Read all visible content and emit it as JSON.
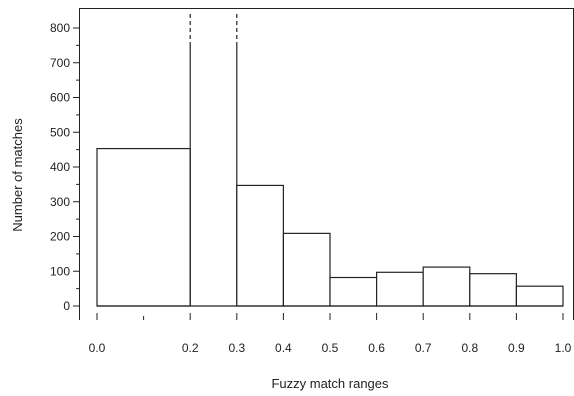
{
  "chart_data": {
    "type": "bar",
    "xlabel": "Fuzzy match ranges",
    "ylabel": "Number of matches",
    "ylim": [
      0,
      800
    ],
    "xlim": [
      0.0,
      1.0
    ],
    "y_ticks": [
      "0",
      "100",
      "200",
      "300",
      "400",
      "500",
      "600",
      "700",
      "800"
    ],
    "x_ticks": [
      "0.0",
      "0.2",
      "0.3",
      "0.4",
      "0.5",
      "0.6",
      "0.7",
      "0.8",
      "0.9",
      "1.0"
    ],
    "bins": [
      {
        "from": 0.0,
        "to": 0.2,
        "value": 453
      },
      {
        "from": 0.2,
        "to": 0.3,
        "value": 745,
        "truncated": true
      },
      {
        "from": 0.3,
        "to": 0.4,
        "value": 347
      },
      {
        "from": 0.4,
        "to": 0.5,
        "value": 209
      },
      {
        "from": 0.5,
        "to": 0.6,
        "value": 82
      },
      {
        "from": 0.6,
        "to": 0.7,
        "value": 97
      },
      {
        "from": 0.7,
        "to": 0.8,
        "value": 112
      },
      {
        "from": 0.8,
        "to": 0.9,
        "value": 93
      },
      {
        "from": 0.9,
        "to": 1.0,
        "value": 57
      }
    ],
    "grid": false,
    "legend": "none"
  }
}
